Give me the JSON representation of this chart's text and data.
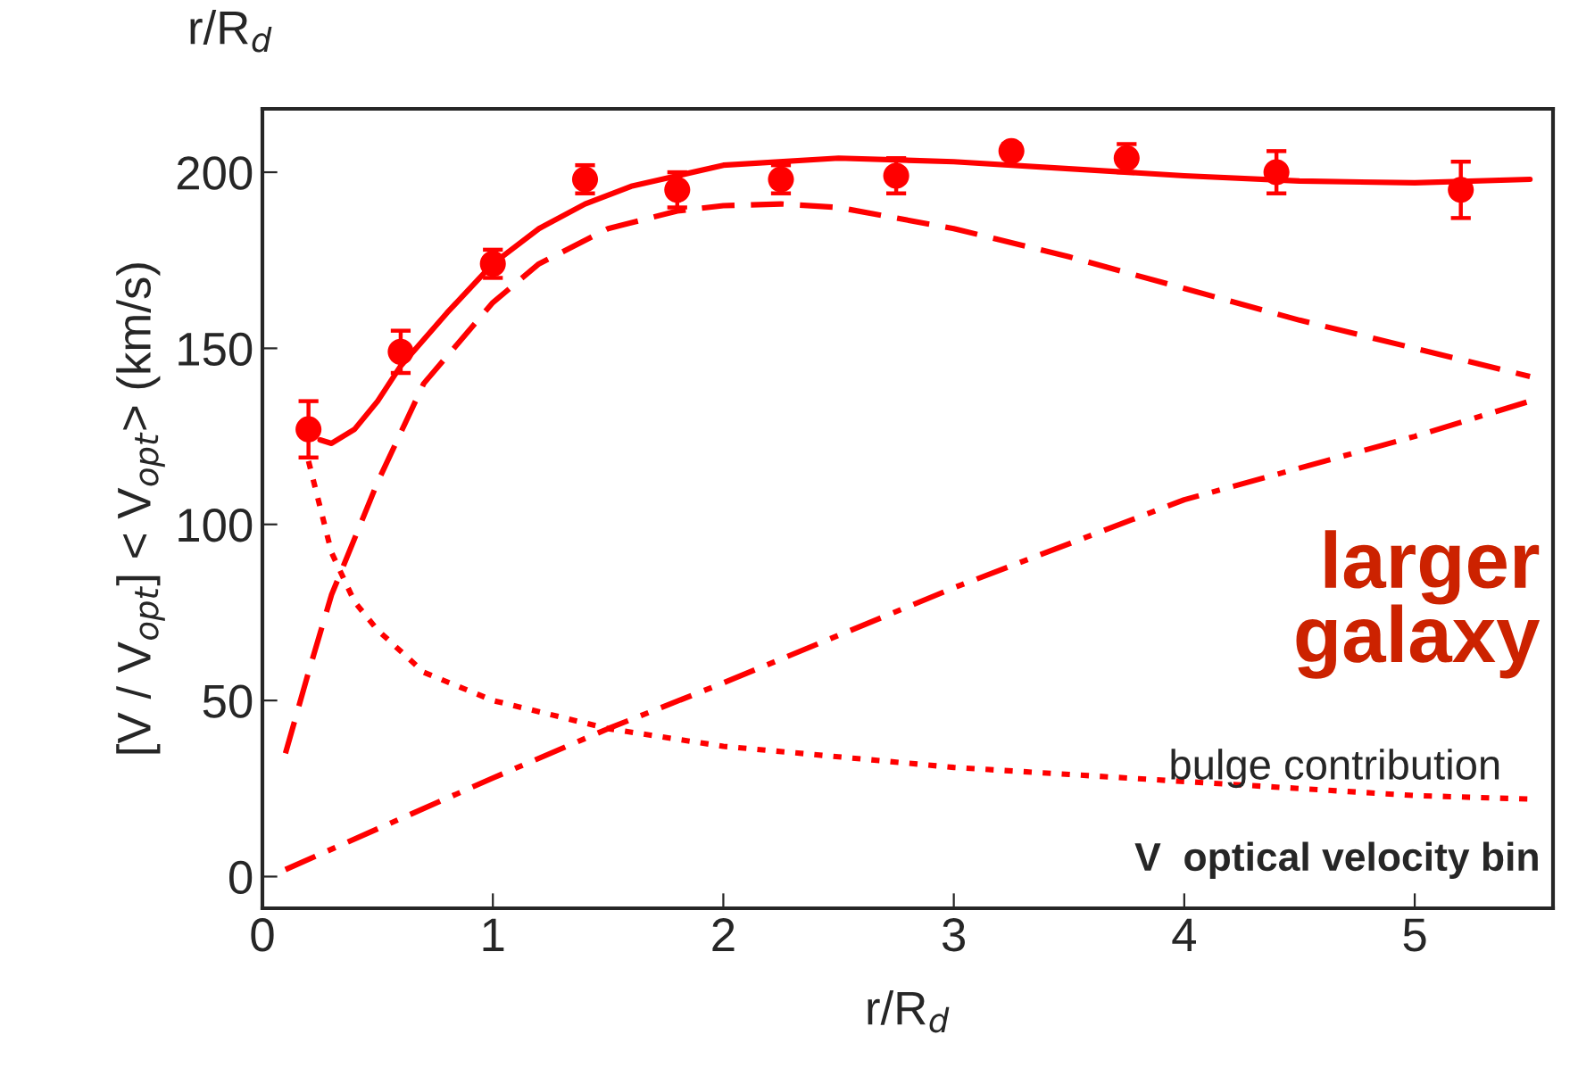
{
  "chart_data": {
    "type": "line",
    "xlabel": "r/R$_{d}$",
    "ylabel": "[V / V$_{opt}$] < V$_{opt}$> (km/s)",
    "xlim": [
      0,
      5.6
    ],
    "ylim": [
      -9,
      218
    ],
    "xticks": [
      0,
      1,
      2,
      3,
      4,
      5
    ],
    "yticks": [
      0,
      50,
      100,
      150,
      200
    ],
    "grid": false,
    "annotations": [
      "r/R$_{d}$",
      "larger\ngalaxy",
      "bulge contribution",
      "V  optical velocity bin"
    ],
    "series": [
      {
        "type": "scatter",
        "marker": "circle",
        "color": "#ff0000",
        "x": [
          0.2,
          0.6,
          1.0,
          1.4,
          1.8,
          2.25,
          2.75,
          3.25,
          3.75,
          4.4,
          5.2
        ],
        "values": [
          127,
          149,
          174,
          198,
          195,
          198,
          199,
          206,
          204,
          200,
          195
        ],
        "errors": [
          8,
          6,
          4,
          4,
          5,
          4,
          5,
          2,
          4,
          6,
          8
        ]
      },
      {
        "line_style": "solid",
        "color": "#ff0000",
        "x": [
          0.25,
          0.3,
          0.4,
          0.5,
          0.6,
          0.8,
          1.0,
          1.2,
          1.4,
          1.6,
          1.8,
          2.0,
          2.5,
          3.0,
          3.5,
          4.0,
          4.5,
          5.0,
          5.5
        ],
        "values": [
          124,
          123,
          127,
          135,
          145,
          160,
          174,
          184,
          191,
          196,
          199,
          202,
          204,
          203,
          201,
          199,
          197.5,
          197,
          198
        ]
      },
      {
        "line_style": "dashed",
        "color": "#ff0000",
        "x": [
          0.1,
          0.2,
          0.3,
          0.5,
          0.7,
          1.0,
          1.2,
          1.5,
          1.8,
          2.0,
          2.25,
          2.5,
          3.0,
          3.5,
          4.0,
          4.5,
          5.0,
          5.5
        ],
        "values": [
          35,
          58,
          80,
          112,
          140,
          163,
          174,
          184,
          189,
          190.5,
          191,
          190,
          184,
          176,
          167,
          158,
          150,
          142
        ]
      },
      {
        "line_style": "dashdot",
        "color": "#ff0000",
        "x": [
          0.1,
          1.0,
          1.5,
          2.0,
          3.0,
          4.0,
          5.0,
          5.5
        ],
        "values": [
          2,
          28,
          42,
          55,
          82,
          107,
          125,
          135
        ]
      },
      {
        "line_style": "dotted",
        "color": "#ff0000",
        "x": [
          0.2,
          0.25,
          0.3,
          0.4,
          0.5,
          0.7,
          1.0,
          1.5,
          2.0,
          2.5,
          3.0,
          3.5,
          4.0,
          4.5,
          5.0,
          5.5
        ],
        "values": [
          118,
          105,
          92,
          78,
          70,
          58,
          50,
          42,
          37,
          34,
          31,
          29,
          27,
          25,
          23,
          22
        ]
      }
    ]
  }
}
